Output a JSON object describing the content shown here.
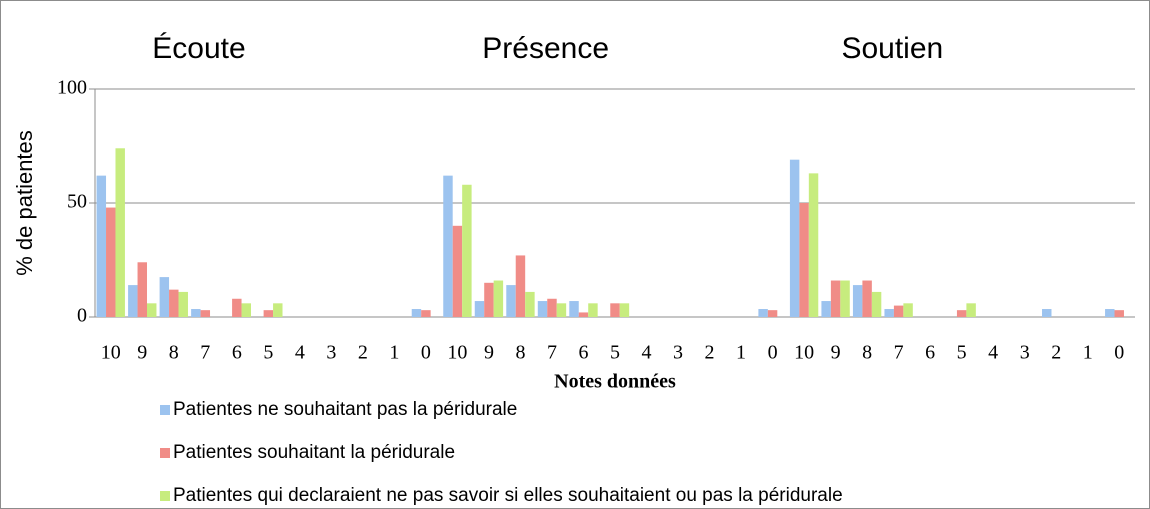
{
  "chart_data": {
    "type": "bar",
    "annotations": [
      "Écoute",
      "Présence",
      "Soutien"
    ],
    "y_label": "% de patientes",
    "x_label": "Notes données",
    "categories": [
      "10",
      "9",
      "8",
      "7",
      "6",
      "5",
      "4",
      "3",
      "2",
      "1",
      "0",
      "10",
      "9",
      "8",
      "7",
      "6",
      "5",
      "4",
      "3",
      "2",
      "1",
      "0",
      "10",
      "9",
      "8",
      "7",
      "6",
      "5",
      "4",
      "3",
      "2",
      "1",
      "0"
    ],
    "series": [
      {
        "name": "Patientes ne souhaitant pas la péridurale",
        "color": "#9cc3ef",
        "values": [
          62,
          14,
          17.5,
          3.5,
          0,
          0,
          0,
          0,
          0,
          0,
          3.5,
          62,
          7,
          14,
          7,
          7,
          0,
          0,
          0,
          0,
          0,
          3.5,
          69,
          7,
          14,
          3.5,
          0,
          0,
          0,
          0,
          3.5,
          0,
          3.5
        ]
      },
      {
        "name": "Patientes souhaitant la péridurale",
        "color": "#f08c87",
        "values": [
          48,
          24,
          12,
          3,
          8,
          3,
          0,
          0,
          0,
          0,
          3,
          40,
          15,
          27,
          8,
          2,
          6,
          0,
          0,
          0,
          0,
          3,
          50,
          16,
          16,
          5,
          0,
          3,
          0,
          0,
          0,
          0,
          3
        ]
      },
      {
        "name": "Patientes qui declaraient ne pas savoir si elles souhaitaient ou pas la péridurale",
        "color": "#c7ec7e",
        "values": [
          74,
          6,
          11,
          0,
          6,
          6,
          0,
          0,
          0,
          0,
          0,
          58,
          16,
          11,
          6,
          6,
          6,
          0,
          0,
          0,
          0,
          0,
          63,
          16,
          11,
          6,
          0,
          6,
          0,
          0,
          0,
          0,
          0
        ]
      }
    ],
    "ylim": [
      0,
      100
    ],
    "yticks": [
      0,
      50,
      100
    ],
    "grid": true,
    "legend": "bottom-left"
  }
}
